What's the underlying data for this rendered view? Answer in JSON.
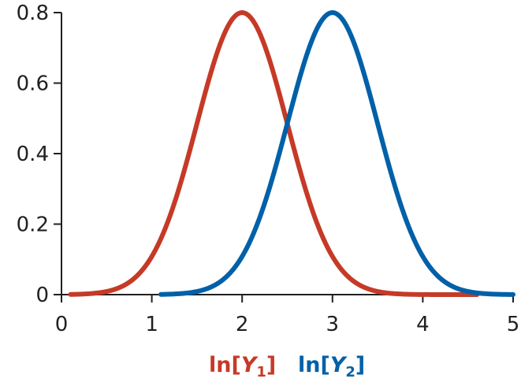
{
  "chart_data": {
    "type": "line",
    "title": "",
    "xlabel": "",
    "ylabel": "",
    "xlim": [
      0,
      5
    ],
    "ylim": [
      0,
      0.8
    ],
    "x_ticks": [
      "0",
      "1",
      "2",
      "3",
      "4",
      "5"
    ],
    "y_ticks": [
      "0",
      "0.2",
      "0.4",
      "0.6",
      "0.8"
    ],
    "grid": false,
    "legend_placement": "bottom-center",
    "series": [
      {
        "name": "ln[Y1]",
        "label_main": "ln[",
        "label_var": "Y",
        "label_sub": "1",
        "label_close": "]",
        "color": "#c53a27",
        "x_start": 0.1,
        "x_end": 4.6,
        "peak_x": 2.0,
        "peak_y": 0.8
      },
      {
        "name": "ln[Y2]",
        "label_main": "ln[",
        "label_var": "Y",
        "label_sub": "2",
        "label_close": "]",
        "color": "#0060a8",
        "x_start": 1.1,
        "x_end": 5.0,
        "peak_x": 3.0,
        "peak_y": 0.8
      }
    ]
  }
}
